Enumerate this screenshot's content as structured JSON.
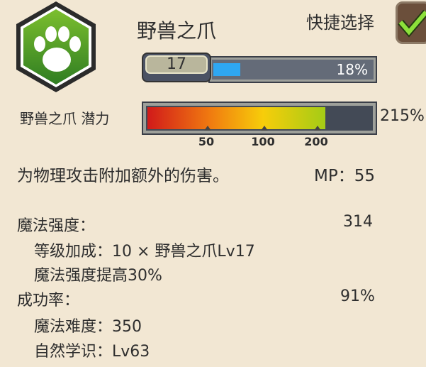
{
  "skill": {
    "name": "野兽之爪",
    "icon": "paw-icon",
    "level": "17",
    "xp_percent": 18,
    "xp_label": "18%"
  },
  "quick_select": {
    "label": "快捷选择",
    "checked": true
  },
  "potential": {
    "label": "野兽之爪 潜力",
    "value_label": "215%",
    "fill_value": 215,
    "max": 300,
    "ticks": [
      "50",
      "100",
      "200"
    ],
    "tick_positions": [
      50,
      100,
      200
    ]
  },
  "description": "为物理攻击附加额外的伤害。",
  "mp": "MP：55",
  "stats": [
    {
      "label": "魔法强度：",
      "value": "314"
    },
    {
      "label": "等级加成：10 × 野兽之爪Lv17",
      "value": ""
    },
    {
      "label": "魔法强度提高30%",
      "value": ""
    },
    {
      "label": "成功率：",
      "value": "91%"
    },
    {
      "label": "魔法难度：350",
      "value": ""
    },
    {
      "label": "自然学识：Lv63",
      "value": ""
    }
  ]
}
